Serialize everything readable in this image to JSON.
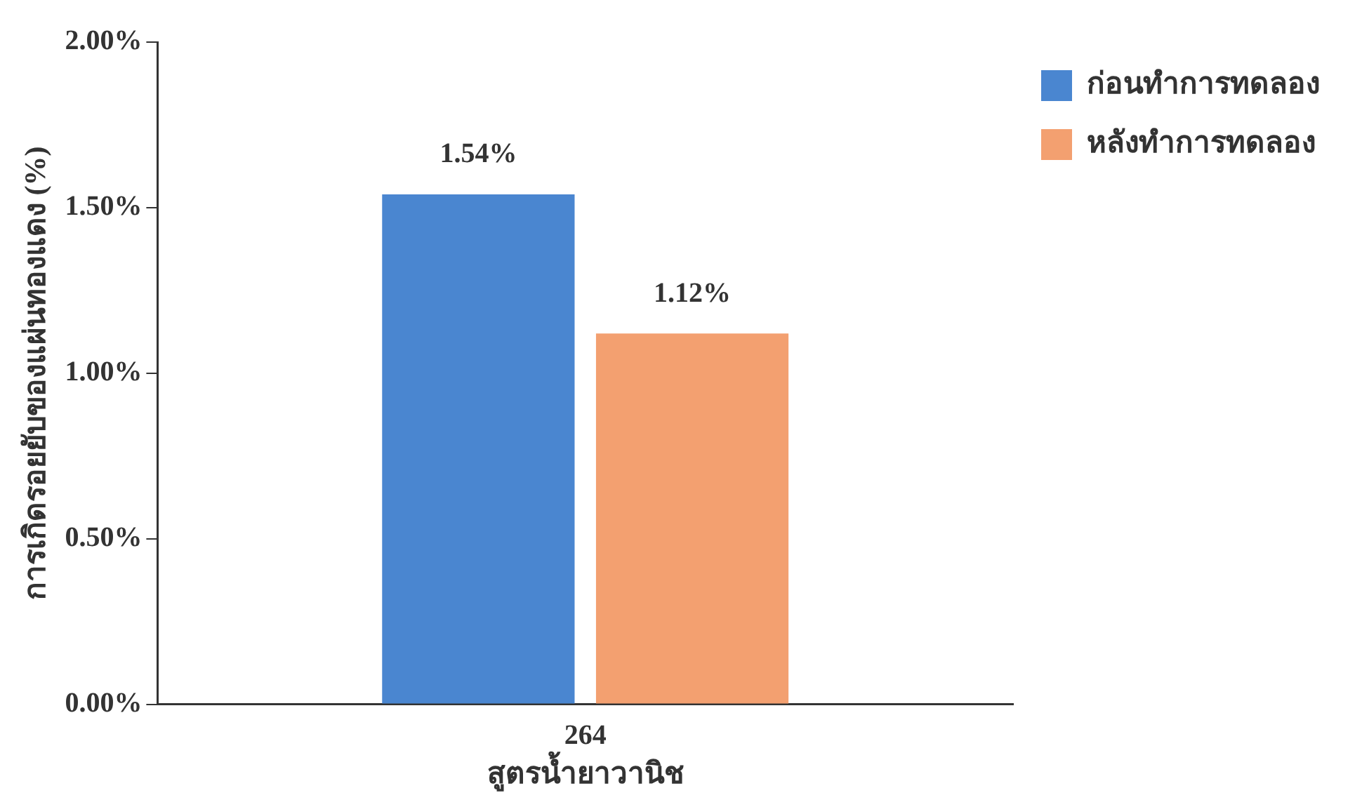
{
  "chart_data": {
    "type": "bar",
    "categories": [
      "264"
    ],
    "xlabel": "สูตรน้ำยาวานิช",
    "ylabel": "การเกิดรอยยับของแผ่นทองแดง (%)",
    "series": [
      {
        "name": "ก่อนทำการทดลอง",
        "color": "#4a86d0",
        "values": [
          1.54
        ],
        "value_labels": [
          "1.54%"
        ]
      },
      {
        "name": "หลังทำการทดลอง",
        "color": "#f3a070",
        "values": [
          1.12
        ],
        "value_labels": [
          "1.12%"
        ]
      }
    ],
    "ylim": [
      0,
      2
    ],
    "yticks": [
      {
        "value": 0,
        "label": "0.00%"
      },
      {
        "value": 0.5,
        "label": "0.50%"
      },
      {
        "value": 1,
        "label": "1.00%"
      },
      {
        "value": 1.5,
        "label": "1.50%"
      },
      {
        "value": 2,
        "label": "2.00%"
      }
    ],
    "grid": false,
    "legend": "right"
  }
}
